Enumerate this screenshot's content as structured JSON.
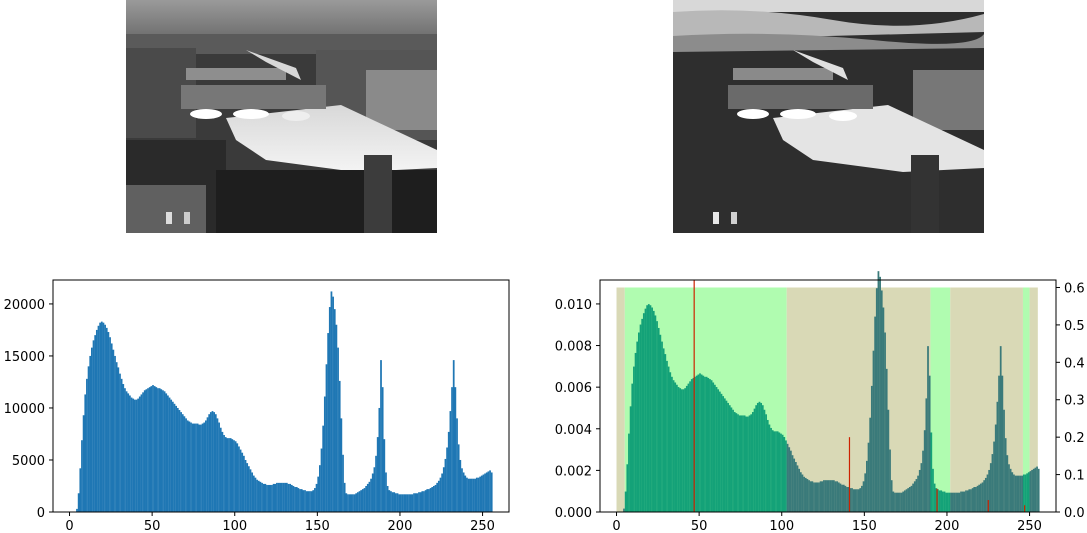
{
  "images": [
    {
      "name": "original-grayscale-photo",
      "description_icon": "city-bridge-river-photo"
    },
    {
      "name": "quantized-grayscale-photo",
      "description_icon": "city-bridge-river-photo-quantized"
    }
  ],
  "chart_data": [
    {
      "type": "bar",
      "title": "",
      "xlabel": "",
      "ylabel": "",
      "xlim": [
        -10,
        266
      ],
      "ylim": [
        0,
        22300
      ],
      "xticks": [
        0,
        50,
        100,
        150,
        200,
        250
      ],
      "yticks": [
        0,
        5000,
        10000,
        15000,
        20000
      ],
      "color": "#1f77b4",
      "series": [
        {
          "x": [
            0,
            1,
            2,
            3,
            4,
            5,
            6,
            7,
            8,
            9,
            10,
            11,
            12,
            13,
            14,
            15,
            16,
            17,
            18,
            19,
            20,
            21,
            22,
            23,
            24,
            25,
            26,
            27,
            28,
            29,
            30,
            31,
            32,
            33,
            34,
            35,
            36,
            37,
            38,
            39,
            40,
            41,
            42,
            43,
            44,
            45,
            46,
            47,
            48,
            49,
            50,
            51,
            52,
            53,
            54,
            55,
            56,
            57,
            58,
            59,
            60,
            61,
            62,
            63,
            64,
            65,
            66,
            67,
            68,
            69,
            70,
            71,
            72,
            73,
            74,
            75,
            76,
            77,
            78,
            79,
            80,
            81,
            82,
            83,
            84,
            85,
            86,
            87,
            88,
            89,
            90,
            91,
            92,
            93,
            94,
            95,
            96,
            97,
            98,
            99,
            100,
            101,
            102,
            103,
            104,
            105,
            106,
            107,
            108,
            109,
            110,
            111,
            112,
            113,
            114,
            115,
            116,
            117,
            118,
            119,
            120,
            121,
            122,
            123,
            124,
            125,
            126,
            127,
            128,
            129,
            130,
            131,
            132,
            133,
            134,
            135,
            136,
            137,
            138,
            139,
            140,
            141,
            142,
            143,
            144,
            145,
            146,
            147,
            148,
            149,
            150,
            151,
            152,
            153,
            154,
            155,
            156,
            157,
            158,
            159,
            160,
            161,
            162,
            163,
            164,
            165,
            166,
            167,
            168,
            169,
            170,
            171,
            172,
            173,
            174,
            175,
            176,
            177,
            178,
            179,
            180,
            181,
            182,
            183,
            184,
            185,
            186,
            187,
            188,
            189,
            190,
            191,
            192,
            193,
            194,
            195,
            196,
            197,
            198,
            199,
            200,
            201,
            202,
            203,
            204,
            205,
            206,
            207,
            208,
            209,
            210,
            211,
            212,
            213,
            214,
            215,
            216,
            217,
            218,
            219,
            220,
            221,
            222,
            223,
            224,
            225,
            226,
            227,
            228,
            229,
            230,
            231,
            232,
            233,
            234,
            235,
            236,
            237,
            238,
            239,
            240,
            241,
            242,
            243,
            244,
            245,
            246,
            247,
            248,
            249,
            250,
            251,
            252,
            253,
            254,
            255
          ],
          "values": [
            0,
            0,
            0,
            0,
            300,
            1800,
            4200,
            6900,
            9300,
            11300,
            12800,
            14000,
            15000,
            15800,
            16500,
            17000,
            17500,
            17900,
            18200,
            18300,
            18200,
            18000,
            17700,
            17300,
            16800,
            16200,
            15600,
            15000,
            14400,
            13900,
            13300,
            12800,
            12300,
            11900,
            11600,
            11400,
            11200,
            11000,
            10900,
            10800,
            10800,
            10900,
            11100,
            11300,
            11500,
            11700,
            11800,
            11900,
            12000,
            12100,
            12200,
            12100,
            12000,
            11900,
            11900,
            11800,
            11700,
            11600,
            11400,
            11200,
            11000,
            10800,
            10600,
            10400,
            10200,
            10000,
            9800,
            9600,
            9400,
            9200,
            9000,
            8800,
            8700,
            8600,
            8500,
            8500,
            8500,
            8500,
            8400,
            8400,
            8500,
            8600,
            8800,
            9100,
            9400,
            9600,
            9700,
            9600,
            9400,
            9000,
            8600,
            8100,
            7700,
            7400,
            7200,
            7100,
            7100,
            7100,
            7000,
            6900,
            6800,
            6600,
            6300,
            6000,
            5700,
            5400,
            5000,
            4700,
            4400,
            4100,
            3800,
            3500,
            3300,
            3100,
            3000,
            2900,
            2800,
            2700,
            2700,
            2600,
            2600,
            2600,
            2600,
            2700,
            2700,
            2800,
            2800,
            2800,
            2800,
            2800,
            2800,
            2800,
            2700,
            2700,
            2600,
            2500,
            2400,
            2400,
            2300,
            2200,
            2200,
            2100,
            2100,
            2000,
            2000,
            2000,
            2000,
            2100,
            2300,
            2700,
            3400,
            4500,
            6100,
            8300,
            11100,
            14200,
            17200,
            19700,
            21200,
            20700,
            19500,
            18000,
            15800,
            12600,
            9000,
            5500,
            2800,
            1800,
            1700,
            1700,
            1700,
            1700,
            1700,
            1800,
            1900,
            2000,
            2100,
            2200,
            2300,
            2500,
            2700,
            2900,
            3200,
            3700,
            4300,
            5400,
            7200,
            10000,
            14600,
            12000,
            7000,
            3800,
            2500,
            2100,
            2000,
            1900,
            1900,
            1800,
            1800,
            1700,
            1700,
            1700,
            1700,
            1700,
            1700,
            1700,
            1700,
            1700,
            1800,
            1800,
            1800,
            1900,
            1900,
            2000,
            2000,
            2100,
            2200,
            2200,
            2300,
            2400,
            2500,
            2600,
            2800,
            3000,
            3300,
            3700,
            4300,
            5100,
            6200,
            7700,
            9700,
            12000,
            14600,
            12000,
            9000,
            6500,
            5000,
            4200,
            3800,
            3500,
            3300,
            3200,
            3200,
            3200,
            3200,
            3200,
            3300,
            3300,
            3400,
            3500,
            3600,
            3700,
            3800,
            3900,
            4000,
            3800
          ]
        }
      ]
    },
    {
      "type": "bar",
      "title": "",
      "xlabel": "",
      "ylabel": "",
      "xlim": [
        -10,
        266
      ],
      "ylim": [
        0,
        0.01115
      ],
      "secondary_ylim": [
        0,
        0.62
      ],
      "xticks": [
        0,
        50,
        100,
        150,
        200,
        250
      ],
      "yticks": [
        0.0,
        0.002,
        0.004,
        0.006,
        0.008,
        0.01
      ],
      "ytick_labels": [
        "0.000",
        "0.002",
        "0.004",
        "0.006",
        "0.008",
        "0.010"
      ],
      "secondary_yticks": [
        0.0,
        0.1,
        0.2,
        0.3,
        0.4,
        0.5,
        0.6
      ],
      "secondary_ytick_labels": [
        "0.0",
        "0.1",
        "0.2",
        "0.3",
        "0.4",
        "0.5",
        "0.6"
      ],
      "histogram_color": "#14a278",
      "overlap_color": "#3a7a7a",
      "band_colors": {
        "light": "#b0fcb0",
        "dark": "#d9d9b6"
      },
      "bands": [
        {
          "from": 0,
          "to": 5,
          "tone": "dark"
        },
        {
          "from": 5,
          "to": 103,
          "tone": "light"
        },
        {
          "from": 103,
          "to": 190,
          "tone": "dark"
        },
        {
          "from": 190,
          "to": 202,
          "tone": "light"
        },
        {
          "from": 202,
          "to": 246,
          "tone": "dark"
        },
        {
          "from": 246,
          "to": 250,
          "tone": "light"
        },
        {
          "from": 250,
          "to": 255,
          "tone": "dark"
        }
      ],
      "red_lines_color": "#cc2200",
      "red_lines": [
        {
          "x": 47,
          "height": 0.62
        },
        {
          "x": 141,
          "height": 0.2
        },
        {
          "x": 194,
          "height": 0.062
        },
        {
          "x": 225,
          "height": 0.032
        },
        {
          "x": 247,
          "height": 0.018
        }
      ],
      "series": [
        {
          "x_from_primary": true,
          "scale": 5.46e-07
        }
      ]
    }
  ]
}
